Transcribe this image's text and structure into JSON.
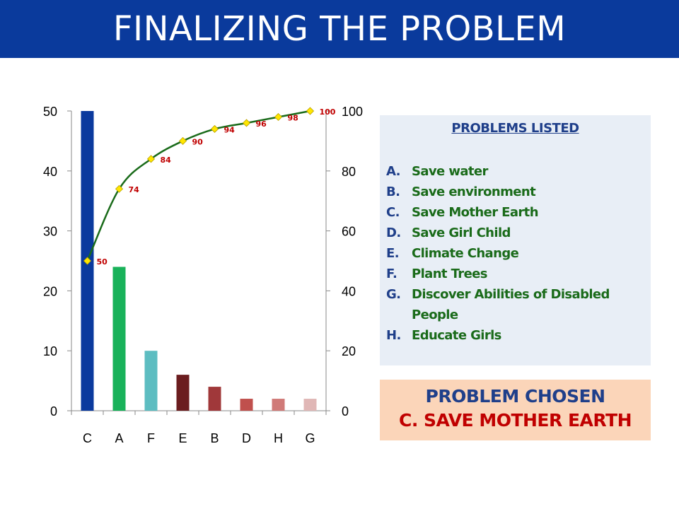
{
  "title": "FINALIZING THE PROBLEM",
  "colors": {
    "title_bg": "#0a3a9c",
    "curve": "#1a6b1a",
    "marker": "#ffe600",
    "label": "#c00000"
  },
  "chart_data": {
    "type": "bar",
    "categories": [
      "C",
      "A",
      "F",
      "E",
      "B",
      "D",
      "H",
      "G"
    ],
    "values": [
      50,
      24,
      10,
      6,
      4,
      2,
      2,
      2
    ],
    "bar_colors": [
      "#0b3a9e",
      "#19b25a",
      "#5dbdc1",
      "#6b1d1f",
      "#a0383a",
      "#c0504d",
      "#d07a78",
      "#e0b7b6"
    ],
    "cumulative": [
      50,
      74,
      84,
      90,
      94,
      96,
      98,
      100
    ],
    "ylim": [
      0,
      50
    ],
    "y_ticks": [
      0,
      10,
      20,
      30,
      40,
      50
    ],
    "y2lim": [
      0,
      100
    ],
    "y2_ticks": [
      0,
      20,
      40,
      60,
      80,
      100
    ],
    "title": "",
    "xlabel": "",
    "ylabel": "",
    "grid": false
  },
  "problems": {
    "heading": "PROBLEMS LISTED",
    "items": [
      {
        "letter": "A.",
        "text": "Save water"
      },
      {
        "letter": "B.",
        "text": "Save environment"
      },
      {
        "letter": "C.",
        "text": "Save Mother Earth"
      },
      {
        "letter": "D.",
        "text": "Save Girl Child"
      },
      {
        "letter": "E.",
        "text": "Climate Change"
      },
      {
        "letter": "F.",
        "text": "Plant Trees"
      },
      {
        "letter": "G.",
        "text": "Discover Abilities of Disabled People"
      },
      {
        "letter": "H.",
        "text": "Educate Girls"
      }
    ]
  },
  "chosen": {
    "heading": "PROBLEM CHOSEN",
    "value": "C.  SAVE MOTHER EARTH"
  }
}
